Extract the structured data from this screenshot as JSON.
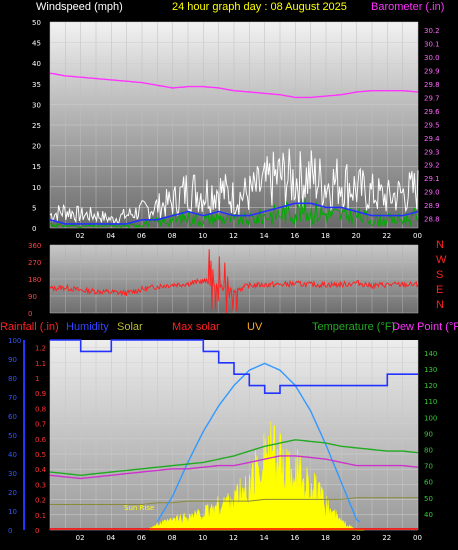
{
  "header": {
    "wind_title": "Windspeed (mph)",
    "graph_title": "24 hour graph day : 08 August 2025",
    "baro_title": "Barometer (.in)"
  },
  "direction_labels": [
    "N",
    "W",
    "S",
    "E",
    "N"
  ],
  "bottom_header": {
    "rainfall": "Rainfall (.in)",
    "humidity": "Humidity",
    "solar": "Solar",
    "max_solar": "Max solar",
    "uv": "UV",
    "temperature": "Temperature (°F)",
    "dew_point": "Dew Point (°F"
  },
  "annotation": {
    "sun_rise": "Sun Rise"
  },
  "colors": {
    "wind_gust": "#ffffff",
    "wind_avg": "#2233ff",
    "wind_speed": "#00aa00",
    "barometer": "#ff33ff",
    "direction": "#ff2222",
    "humidity": "#2233ff",
    "solar": "#ffff00",
    "max_solar": "#3399ff",
    "temperature": "#22aa22",
    "dew_point": "#cc33cc",
    "uv": "#ffaa22",
    "rain": "#ff0000"
  },
  "chart_data": [
    {
      "type": "line",
      "title": "24 hour graph day : 08 August 2025",
      "xlabel": "",
      "x_ticks": [
        "02",
        "04",
        "06",
        "08",
        "10",
        "12",
        "14",
        "16",
        "18",
        "20",
        "22",
        "00"
      ],
      "y_left_label": "Windspeed (mph)",
      "y_left_ticks": [
        0,
        5,
        10,
        15,
        20,
        25,
        30,
        35,
        40,
        45,
        50
      ],
      "y_left_range": [
        0,
        50
      ],
      "y_right_label": "Barometer (.in)",
      "y_right_ticks": [
        28.8,
        28.9,
        29.0,
        29.1,
        29.2,
        29.3,
        29.4,
        29.5,
        29.6,
        29.7,
        29.8,
        29.9,
        30.0,
        30.1,
        30.2
      ],
      "y_right_range": [
        28.73,
        30.26
      ],
      "hours": [
        0,
        1,
        2,
        3,
        4,
        5,
        6,
        7,
        8,
        9,
        10,
        11,
        12,
        13,
        14,
        15,
        16,
        17,
        18,
        19,
        20,
        21,
        22,
        23,
        24
      ],
      "series": [
        {
          "name": "Wind gust",
          "axis": "left",
          "values": [
            3,
            4,
            3,
            3,
            2,
            3,
            4,
            5,
            6,
            9,
            8,
            9,
            7,
            8,
            10,
            12,
            11,
            12,
            10,
            11,
            9,
            8,
            7,
            8,
            9
          ]
        },
        {
          "name": "Wind average",
          "axis": "left",
          "values": [
            2,
            1,
            1,
            1,
            1,
            1,
            2,
            2,
            3,
            4,
            3,
            4,
            3,
            3,
            4,
            5,
            6,
            6,
            5,
            5,
            4,
            3,
            3,
            3,
            4
          ]
        },
        {
          "name": "Wind speed",
          "axis": "left",
          "values": [
            1,
            0.5,
            0.5,
            0.5,
            0.5,
            0.5,
            1,
            1.5,
            2,
            2.5,
            2,
            2.5,
            2,
            2,
            3,
            3.5,
            4,
            4,
            3.5,
            3,
            3,
            2,
            2,
            2,
            3
          ]
        },
        {
          "name": "Barometer",
          "axis": "right",
          "values": [
            29.88,
            29.86,
            29.85,
            29.84,
            29.83,
            29.82,
            29.81,
            29.79,
            29.77,
            29.78,
            29.78,
            29.77,
            29.75,
            29.74,
            29.73,
            29.72,
            29.7,
            29.7,
            29.71,
            29.72,
            29.74,
            29.75,
            29.75,
            29.75,
            29.74
          ]
        }
      ]
    },
    {
      "type": "line",
      "title": "",
      "y_ticks": [
        0,
        90,
        180,
        270,
        360
      ],
      "y_range": [
        0,
        360
      ],
      "hours": [
        0,
        1,
        2,
        3,
        4,
        5,
        6,
        7,
        8,
        9,
        10,
        11,
        12,
        13,
        14,
        15,
        16,
        17,
        18,
        19,
        20,
        21,
        22,
        23,
        24
      ],
      "series": [
        {
          "name": "Wind direction",
          "values": [
            130,
            135,
            120,
            115,
            110,
            105,
            125,
            140,
            150,
            155,
            170,
            140,
            120,
            145,
            150,
            150,
            155,
            150,
            150,
            150,
            160,
            145,
            150,
            150,
            150
          ]
        }
      ]
    },
    {
      "type": "line",
      "title": "",
      "x_ticks": [
        "02",
        "04",
        "06",
        "08",
        "10",
        "12",
        "14",
        "16",
        "18",
        "20",
        "22",
        "00"
      ],
      "y_rain_ticks": [
        0,
        0.1,
        0.2,
        0.3,
        0.4,
        0.5,
        0.6,
        0.7,
        0.8,
        0.9,
        1,
        1.1,
        1.2
      ],
      "y_rain_range": [
        0,
        1.25
      ],
      "y_humidity_ticks": [
        0,
        10,
        20,
        30,
        40,
        50,
        60,
        70,
        80,
        90,
        100
      ],
      "y_humidity_range": [
        0,
        100
      ],
      "y_temp_ticks": [
        40,
        50,
        60,
        70,
        80,
        90,
        100,
        110,
        120,
        130,
        140
      ],
      "y_temp_range": [
        30,
        148
      ],
      "hours": [
        0,
        1,
        2,
        3,
        4,
        5,
        6,
        7,
        8,
        9,
        10,
        11,
        12,
        13,
        14,
        15,
        16,
        17,
        18,
        19,
        20,
        21,
        22,
        23,
        24
      ],
      "series": [
        {
          "name": "Humidity",
          "axis": "humidity",
          "values": [
            100,
            100,
            94,
            94,
            100,
            100,
            100,
            100,
            100,
            100,
            94,
            88,
            82,
            76,
            72,
            76,
            76,
            76,
            76,
            76,
            76,
            76,
            82,
            82,
            82
          ]
        },
        {
          "name": "Temperature",
          "axis": "temp",
          "values": [
            66,
            65,
            64,
            65,
            66,
            67,
            68,
            69,
            70,
            71,
            72,
            74,
            76,
            79,
            82,
            84,
            86,
            85,
            84,
            82,
            81,
            80,
            79,
            79,
            78
          ]
        },
        {
          "name": "Dew Point",
          "axis": "temp",
          "values": [
            64,
            63,
            62,
            63,
            64,
            65,
            66,
            67,
            68,
            68,
            69,
            70,
            70,
            72,
            74,
            76,
            76,
            75,
            74,
            72,
            70,
            70,
            70,
            70,
            69
          ]
        },
        {
          "name": "Max solar",
          "axis": "solar_curve",
          "values": [
            0,
            0,
            0,
            0,
            0,
            0,
            0,
            0.05,
            0.2,
            0.4,
            0.58,
            0.73,
            0.85,
            0.94,
            0.98,
            0.94,
            0.85,
            0.7,
            0.5,
            0.28,
            0.06,
            0,
            0,
            0,
            0
          ]
        },
        {
          "name": "Solar",
          "axis": "solar_curve",
          "values": [
            0,
            0,
            0,
            0,
            0,
            0,
            0,
            0.03,
            0.06,
            0.08,
            0.1,
            0.15,
            0.2,
            0.25,
            0.5,
            0.42,
            0.36,
            0.28,
            0.15,
            0.05,
            0,
            0,
            0,
            0,
            0
          ]
        },
        {
          "name": "UV",
          "axis": "solar_curve",
          "values": [
            0.15,
            0.15,
            0.15,
            0.15,
            0.15,
            0.15,
            0.15,
            0.16,
            0.16,
            0.17,
            0.17,
            0.17,
            0.17,
            0.17,
            0.18,
            0.18,
            0.18,
            0.18,
            0.18,
            0.18,
            0.19,
            0.19,
            0.19,
            0.19,
            0.19
          ]
        }
      ]
    }
  ]
}
